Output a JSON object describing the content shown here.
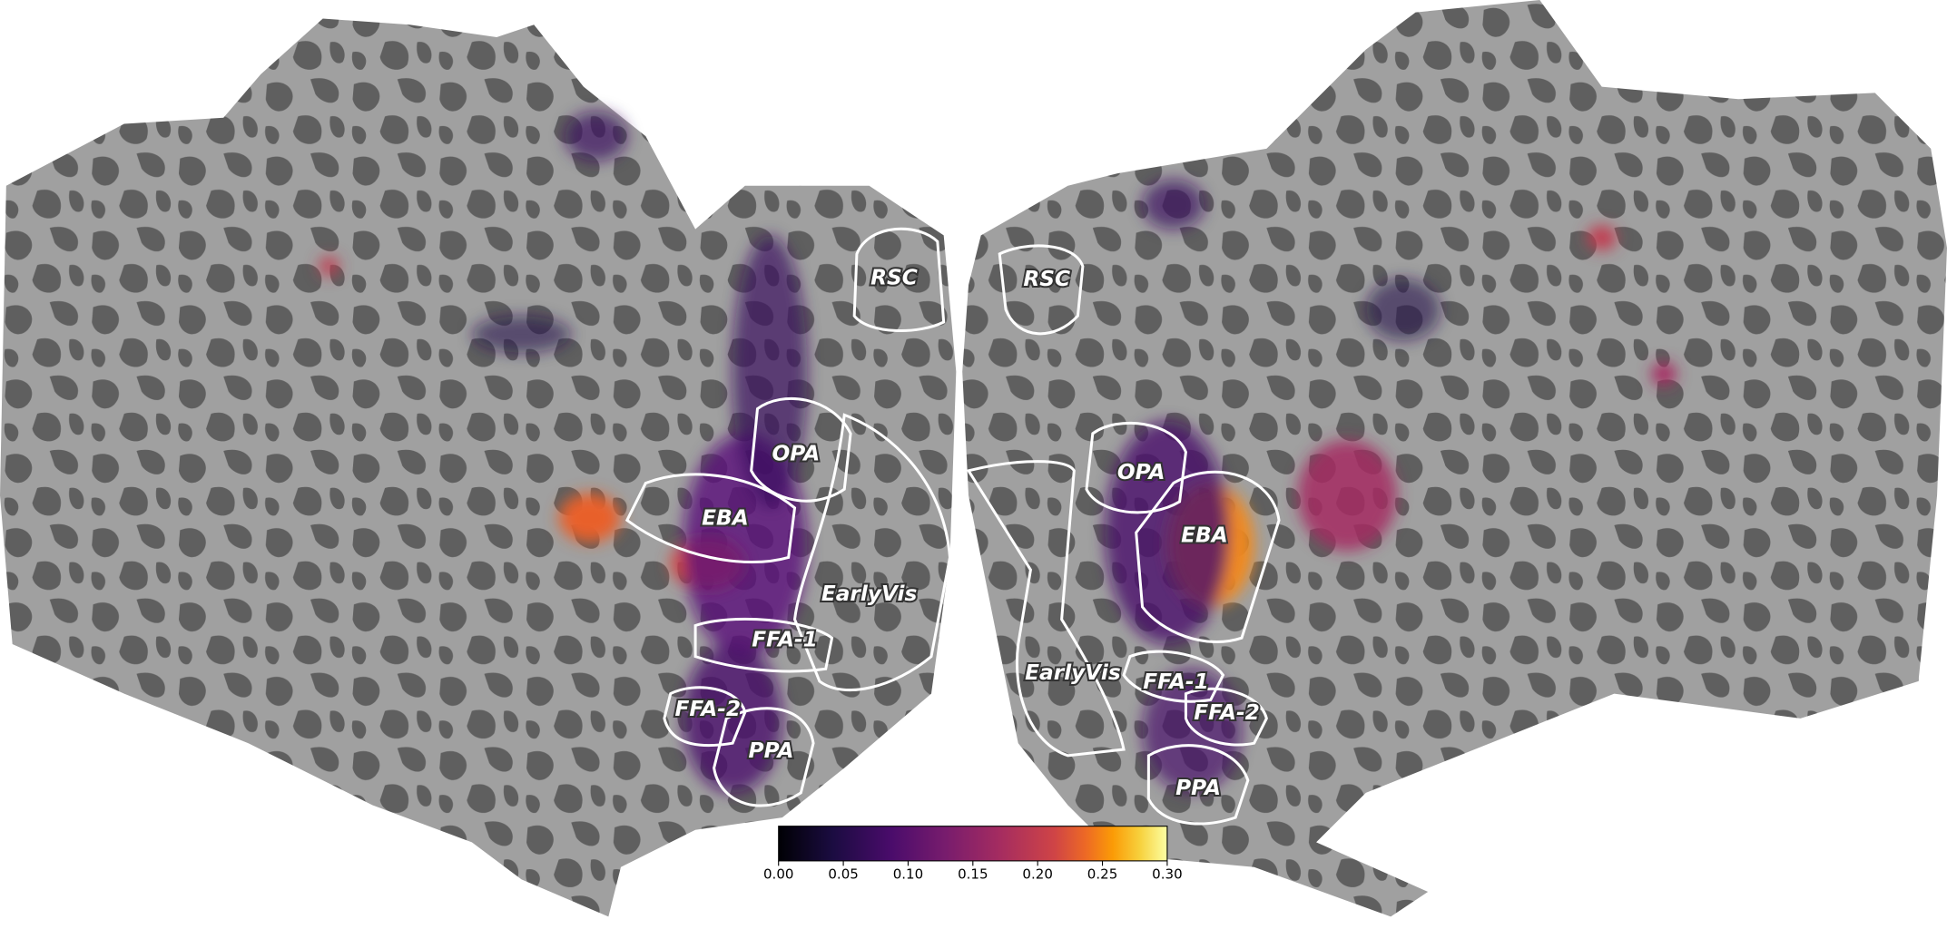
{
  "flatmap": {
    "rois": {
      "left": [
        "RSC",
        "OPA",
        "EBA",
        "EarlyVis",
        "FFA-1",
        "FFA-2",
        "PPA"
      ],
      "right": [
        "RSC",
        "OPA",
        "EBA",
        "EarlyVis",
        "FFA-1",
        "FFA-2",
        "PPA"
      ]
    },
    "colorbar": {
      "colormap": "inferno",
      "lim": [
        0,
        0.3
      ],
      "ticks": [
        {
          "value": 0,
          "label": "0.00"
        },
        {
          "value": 0.05,
          "label": "0.05"
        },
        {
          "value": 0.1,
          "label": "0.10"
        },
        {
          "value": 0.15,
          "label": "0.15"
        },
        {
          "value": 0.2,
          "label": "0.20"
        },
        {
          "value": 0.25,
          "label": "0.25"
        },
        {
          "value": 0.3,
          "label": "0.30"
        }
      ]
    }
  }
}
